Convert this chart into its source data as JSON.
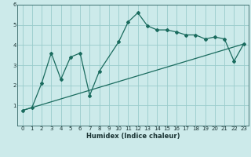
{
  "xlabel": "Humidex (Indice chaleur)",
  "bg_color": "#cceaea",
  "grid_color": "#99cccc",
  "line_color": "#1a6b5e",
  "line1_x": [
    0,
    1,
    2,
    3,
    4,
    5,
    6,
    7,
    8,
    10,
    11,
    12,
    13,
    14,
    15,
    16,
    17,
    18,
    19,
    20,
    21,
    22,
    23
  ],
  "line1_y": [
    0.75,
    0.9,
    2.1,
    3.6,
    2.3,
    3.4,
    3.6,
    1.5,
    2.7,
    4.15,
    5.15,
    5.6,
    4.95,
    4.75,
    4.75,
    4.65,
    4.5,
    4.5,
    4.3,
    4.4,
    4.3,
    3.2,
    4.05
  ],
  "line2_x": [
    0,
    23
  ],
  "line2_y": [
    0.75,
    4.05
  ],
  "ylim": [
    0,
    6
  ],
  "xlim": [
    -0.5,
    23.5
  ],
  "yticks": [
    1,
    2,
    3,
    4,
    5,
    6
  ],
  "xticks": [
    0,
    1,
    2,
    3,
    4,
    5,
    6,
    7,
    8,
    9,
    10,
    11,
    12,
    13,
    14,
    15,
    16,
    17,
    18,
    19,
    20,
    21,
    22,
    23
  ],
  "tick_fontsize": 5.0,
  "xlabel_fontsize": 6.0
}
